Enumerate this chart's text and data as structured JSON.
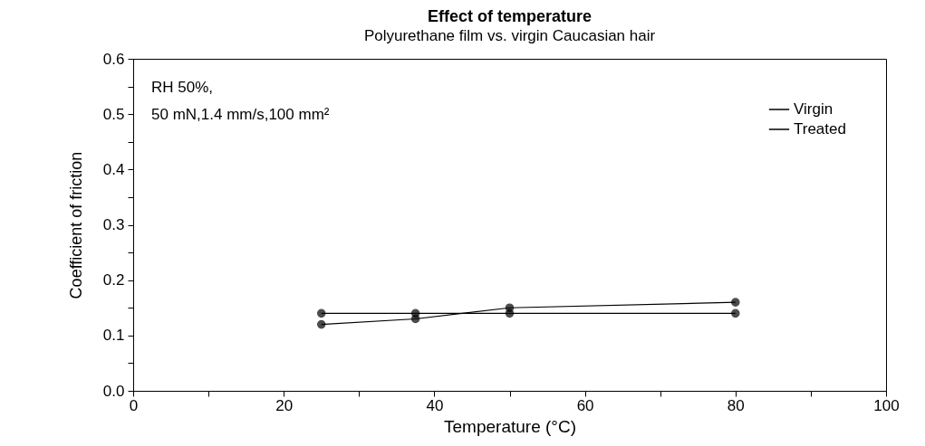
{
  "chart_data": {
    "type": "line",
    "title": "Effect of temperature",
    "subtitle": "Polyurethane film vs. virgin Caucasian hair",
    "xlabel": "Temperature (°C)",
    "ylabel": "Coefficient of friction",
    "annotations": [
      "RH 50%,",
      "50 mN,1.4 mm/s,100 mm²"
    ],
    "x": [
      25,
      37.5,
      50,
      80
    ],
    "series": [
      {
        "name": "Virgin",
        "color": "#000000",
        "values": [
          0.14,
          0.14,
          0.14,
          0.14
        ]
      },
      {
        "name": "Treated",
        "color": "#000000",
        "values": [
          0.12,
          0.13,
          0.15,
          0.16
        ]
      }
    ],
    "xlim": [
      0,
      100
    ],
    "ylim": [
      0,
      0.6
    ],
    "xticks": [
      0,
      {
        "value": 10,
        "label": null
      },
      20,
      {
        "value": 30,
        "label": null
      },
      40,
      {
        "value": 50,
        "label": null
      },
      60,
      {
        "value": 70,
        "label": null
      },
      80,
      {
        "value": 90,
        "label": null
      },
      100
    ],
    "yticks": [
      {
        "value": 0,
        "label": "0.0"
      },
      {
        "value": 0.05,
        "label": null
      },
      0.1,
      {
        "value": 0.15,
        "label": null
      },
      0.2,
      {
        "value": 0.25,
        "label": null
      },
      0.3,
      {
        "value": 0.35,
        "label": null
      },
      0.4,
      {
        "value": 0.45,
        "label": null
      },
      0.5,
      {
        "value": 0.55,
        "label": null
      },
      0.6
    ],
    "grid": false,
    "legend": "top right",
    "marker": "circle",
    "line_style": "solid"
  }
}
